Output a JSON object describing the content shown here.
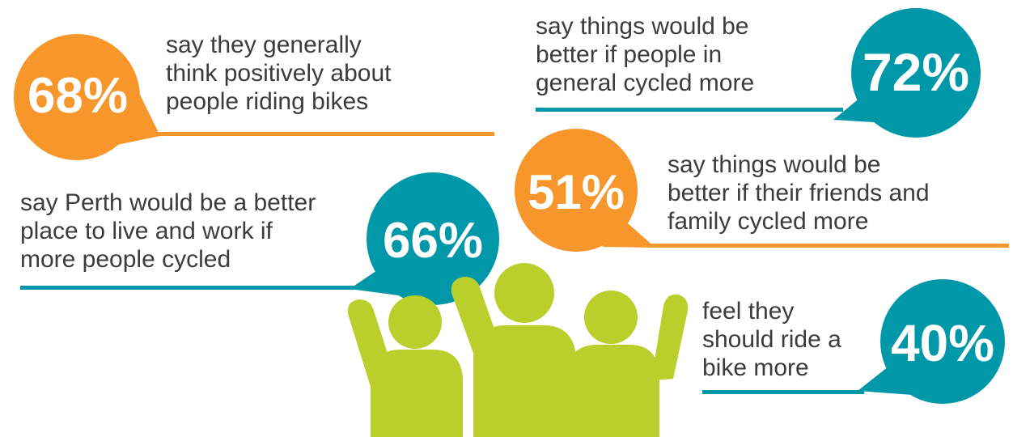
{
  "colors": {
    "orange": "#f6962b",
    "teal": "#0098a8",
    "green": "#b9cf2c",
    "text": "#3c3c3c"
  },
  "stats": [
    {
      "id": "s68",
      "value": "68%",
      "color": "orange",
      "lines": [
        "say they generally",
        "think positively about",
        "people riding bikes"
      ]
    },
    {
      "id": "s72",
      "value": "72%",
      "color": "teal",
      "lines": [
        "say things would be",
        "better if people in",
        "general cycled more"
      ]
    },
    {
      "id": "s51",
      "value": "51%",
      "color": "orange",
      "lines": [
        "say things would be",
        "better if their friends and",
        "family cycled more"
      ]
    },
    {
      "id": "s66",
      "value": "66%",
      "color": "teal",
      "lines": [
        "say Perth would be a better",
        "place to live and work if",
        "more people cycled"
      ]
    },
    {
      "id": "s40",
      "value": "40%",
      "color": "teal",
      "lines": [
        "feel they",
        "should ride a",
        "bike more"
      ]
    }
  ],
  "illustration": {
    "icon": "cheering-people-icon"
  }
}
